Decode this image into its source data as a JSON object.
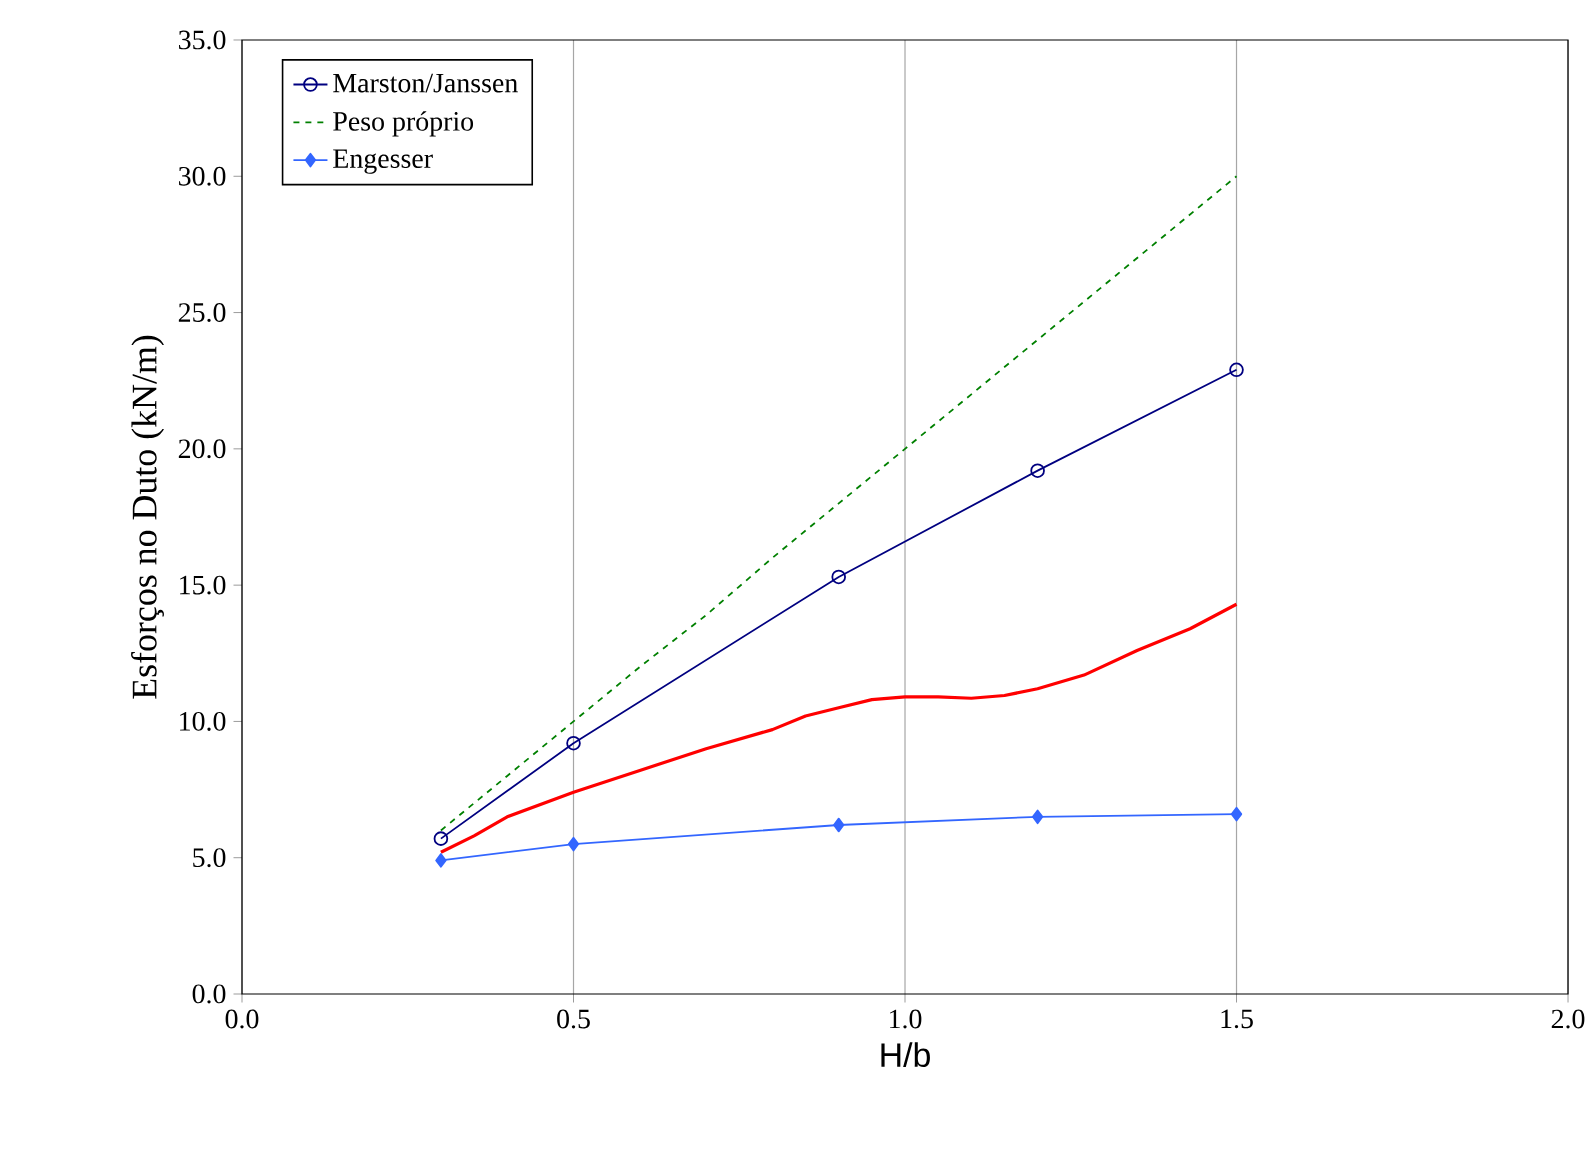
{
  "chart_data": {
    "type": "line",
    "xlabel": "H/b",
    "ylabel": "Esforços no Duto (kN/m)",
    "xlim": [
      0,
      2
    ],
    "xticks": [
      {
        "value": 0,
        "label": "0.0"
      },
      {
        "value": 0.5,
        "label": "0.5"
      },
      {
        "value": 1,
        "label": "1.0"
      },
      {
        "value": 1.5,
        "label": "1.5"
      },
      {
        "value": 2,
        "label": "2.0"
      }
    ],
    "ylim": [
      0,
      35
    ],
    "yticks": [
      {
        "value": 0,
        "label": "0.0"
      },
      {
        "value": 5,
        "label": "5.0"
      },
      {
        "value": 10,
        "label": "10.0"
      },
      {
        "value": 15,
        "label": "15.0"
      },
      {
        "value": 20,
        "label": "20.0"
      },
      {
        "value": 25,
        "label": "25.0"
      },
      {
        "value": 30,
        "label": "30.0"
      },
      {
        "value": 35,
        "label": "35.0"
      }
    ],
    "grid": "x",
    "legend": "top left",
    "series": [
      {
        "name": "Marston/Janssen",
        "color": "#000080",
        "marker": "circle",
        "line_style": "solid",
        "x": [
          0.3,
          0.5,
          0.9,
          1.2,
          1.5
        ],
        "values": [
          5.7,
          9.2,
          15.3,
          19.2,
          22.9
        ]
      },
      {
        "color": "#ff0000",
        "marker": "none",
        "line_style": "solid",
        "x": [
          0.3,
          0.35,
          0.4,
          0.5,
          0.6,
          0.7,
          0.8,
          0.85,
          0.9,
          0.95,
          1.0,
          1.05,
          1.1,
          1.15,
          1.2,
          1.27,
          1.35,
          1.43,
          1.5
        ],
        "values": [
          5.2,
          5.8,
          6.5,
          7.4,
          8.2,
          9.0,
          9.7,
          10.2,
          10.5,
          10.8,
          10.9,
          10.9,
          10.85,
          10.95,
          11.2,
          11.7,
          12.6,
          13.4,
          14.3
        ]
      },
      {
        "name": "Peso próprio",
        "color": "#008000",
        "marker": "none",
        "line_style": "dashed",
        "x": [
          0.3,
          0.4,
          0.5,
          0.6,
          0.7,
          0.8,
          0.9,
          1.0,
          1.1,
          1.2,
          1.3,
          1.4,
          1.5
        ],
        "values": [
          6.0,
          8.0,
          10.0,
          12.0,
          13.9,
          16.0,
          18.0,
          20.0,
          22.0,
          24.0,
          26.0,
          28.0,
          30.0
        ]
      },
      {
        "name": "Engesser",
        "color": "#3366ff",
        "marker": "diamond",
        "line_style": "solid",
        "x": [
          0.3,
          0.5,
          0.9,
          1.2,
          1.5
        ],
        "values": [
          4.9,
          5.5,
          6.2,
          6.5,
          6.6
        ]
      }
    ]
  }
}
